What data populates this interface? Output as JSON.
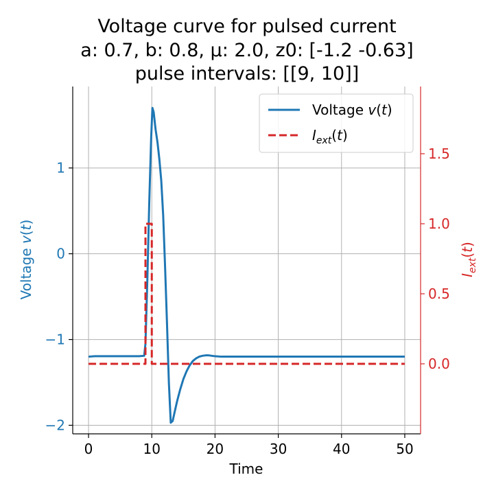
{
  "chart_data": {
    "type": "line",
    "title_lines": [
      "Voltage curve for pulsed current",
      "a: 0.7, b: 0.8, μ: 2.0, z0: [-1.2  -0.63]",
      "pulse intervals: [[9, 10]]"
    ],
    "xlabel": "Time",
    "ylabel_left": "Voltage v(t)",
    "ylabel_right": "I_ext(t)",
    "xlim": [
      -2.5,
      52.5
    ],
    "ylim_left": [
      -2.1,
      1.95
    ],
    "ylim_right": [
      -0.5,
      1.98
    ],
    "xticks": [
      0,
      10,
      20,
      30,
      40,
      50
    ],
    "yticks_left": [
      -2,
      -1,
      0,
      1
    ],
    "yticks_right": [
      0.0,
      0.5,
      1.0,
      1.5
    ],
    "grid": true,
    "legend_position": "top-right",
    "colors": {
      "voltage": "#1f77b4",
      "current": "#d62728"
    },
    "series": [
      {
        "name": "Voltage v(t)",
        "axis": "left",
        "style": "solid",
        "x": [
          0,
          1,
          2,
          3,
          4,
          5,
          6,
          7,
          8,
          8.8,
          9.0,
          9.3,
          9.6,
          9.9,
          10.1,
          10.3,
          10.6,
          10.9,
          11.2,
          11.5,
          11.8,
          12.1,
          12.4,
          12.7,
          13.0,
          13.3,
          13.6,
          14.0,
          14.5,
          15.0,
          15.5,
          16.0,
          16.5,
          17.0,
          17.5,
          18.0,
          18.5,
          19.0,
          19.5,
          20.0,
          21.0,
          22.0,
          24.0,
          26.0,
          28.0,
          30.0,
          32.0,
          35.0,
          40.0,
          45.0,
          50.0
        ],
        "y": [
          -1.2,
          -1.195,
          -1.195,
          -1.195,
          -1.195,
          -1.195,
          -1.195,
          -1.195,
          -1.195,
          -1.19,
          -1.05,
          -0.3,
          0.6,
          1.35,
          1.7,
          1.65,
          1.45,
          1.3,
          1.1,
          0.85,
          0.45,
          -0.15,
          -0.8,
          -1.5,
          -1.97,
          -1.95,
          -1.85,
          -1.72,
          -1.58,
          -1.46,
          -1.37,
          -1.3,
          -1.25,
          -1.22,
          -1.2,
          -1.19,
          -1.185,
          -1.185,
          -1.19,
          -1.195,
          -1.2,
          -1.2,
          -1.2,
          -1.2,
          -1.2,
          -1.2,
          -1.2,
          -1.2,
          -1.2,
          -1.2,
          -1.2
        ]
      },
      {
        "name": "I_ext(t)",
        "axis": "right",
        "style": "dashed",
        "x": [
          0,
          9,
          9,
          10,
          10,
          50
        ],
        "y": [
          0,
          0,
          1,
          1,
          0,
          0
        ]
      }
    ]
  }
}
